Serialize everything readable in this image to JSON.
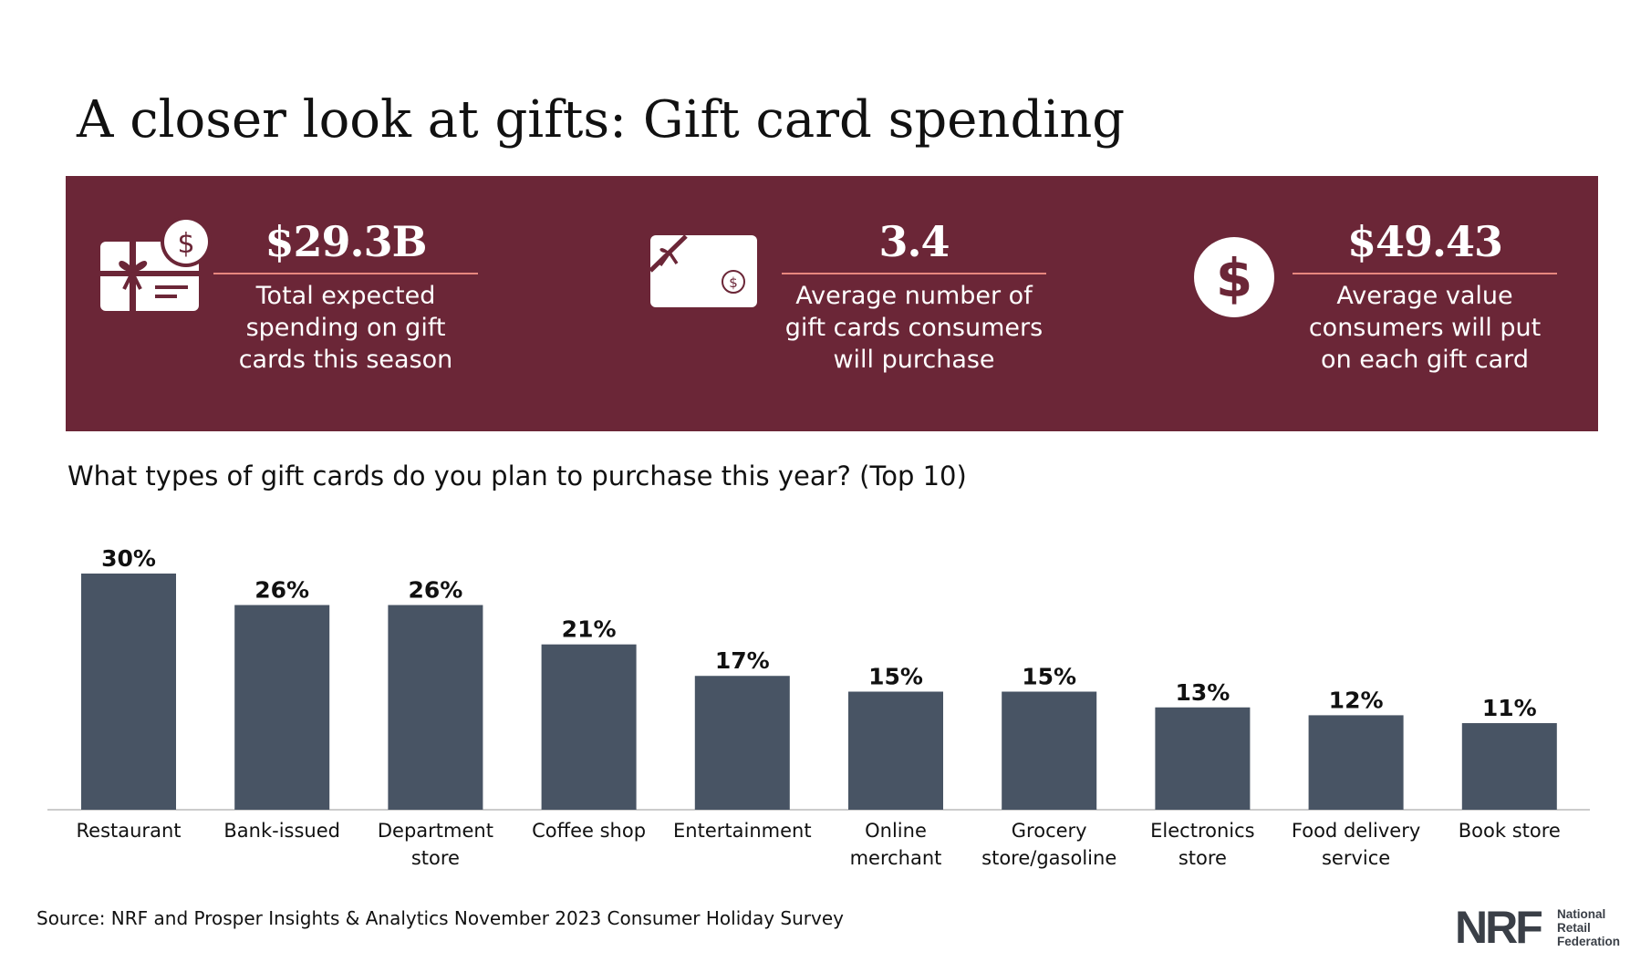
{
  "title": "A closer look at gifts: Gift card spending",
  "stats": [
    {
      "value": "$29.3B",
      "description_lines": [
        "Total expected",
        "spending on gift",
        "cards this season"
      ],
      "icon": "gift-card-dollar-icon"
    },
    {
      "value": "3.4",
      "description_lines": [
        "Average number of",
        "gift cards consumers",
        "will purchase"
      ],
      "icon": "gift-card-bow-icon"
    },
    {
      "value": "$49.43",
      "description_lines": [
        "Average value",
        "consumers will put",
        "on each gift card"
      ],
      "icon": "dollar-circle-icon"
    }
  ],
  "colors": {
    "banner": "#6b2637",
    "banner_rule": "#e8877f",
    "bar": "#485464",
    "axis": "#cccccc",
    "text": "#111111"
  },
  "chart_data": {
    "type": "bar",
    "title": "What types of gift cards do you plan to purchase this year? (Top 10)",
    "categories": [
      [
        "Restaurant"
      ],
      [
        "Bank-issued"
      ],
      [
        "Department",
        "store"
      ],
      [
        "Coffee shop"
      ],
      [
        "Entertainment"
      ],
      [
        "Online",
        "merchant"
      ],
      [
        "Grocery",
        "store/gasoline"
      ],
      [
        "Electronics",
        "store"
      ],
      [
        "Food delivery",
        "service"
      ],
      [
        "Book store"
      ]
    ],
    "values": [
      30,
      26,
      26,
      21,
      17,
      15,
      15,
      13,
      12,
      11
    ],
    "value_labels": [
      "30%",
      "26%",
      "26%",
      "21%",
      "17%",
      "15%",
      "15%",
      "13%",
      "12%",
      "11%"
    ],
    "xlabel": "",
    "ylabel": "",
    "ylim": [
      0,
      30
    ],
    "grid": false
  },
  "source": "Source: NRF and Prosper Insights & Analytics November 2023 Consumer Holiday Survey",
  "logo": {
    "mark": "NRF",
    "words": [
      "National",
      "Retail",
      "Federation"
    ]
  }
}
